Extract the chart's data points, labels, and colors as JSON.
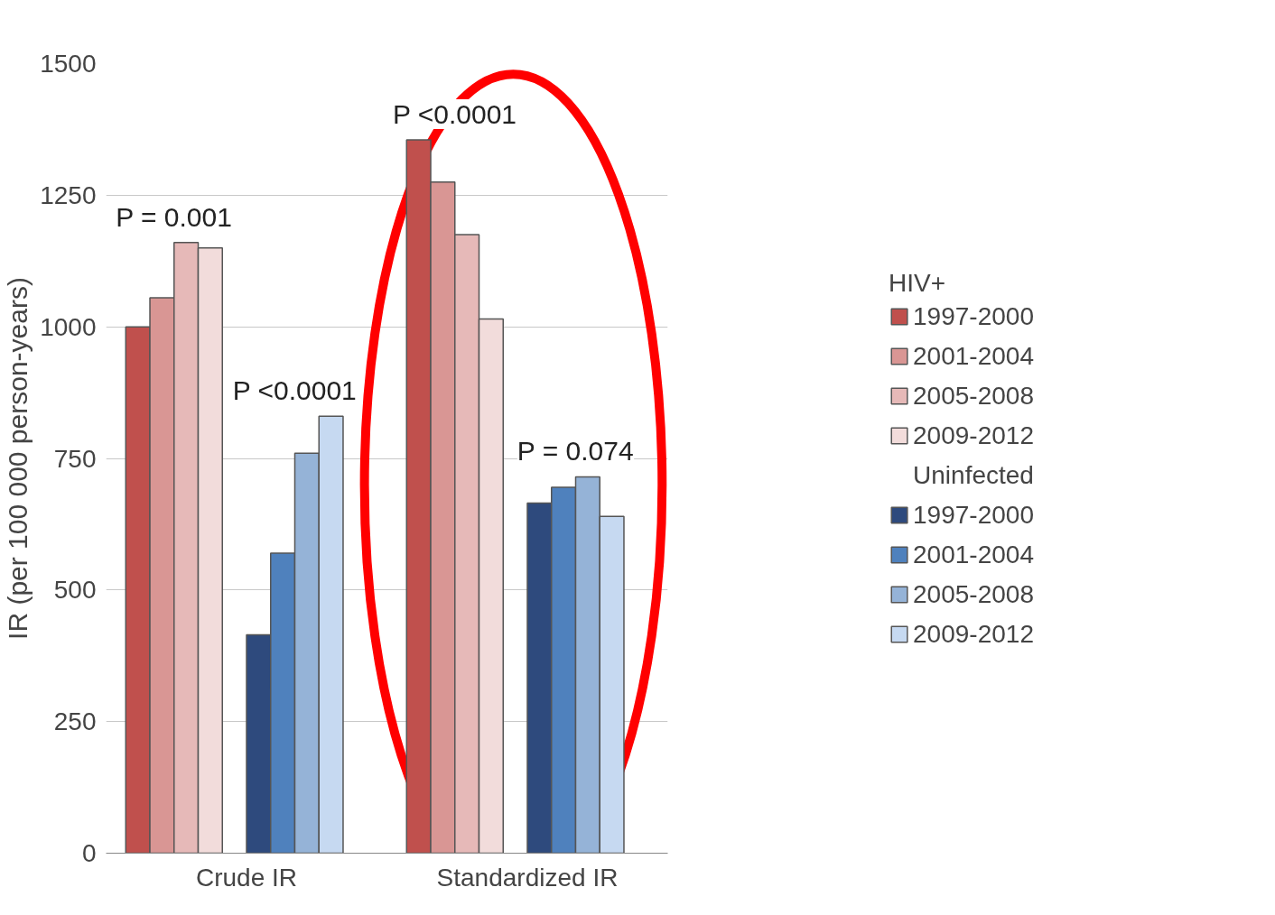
{
  "chart_data": {
    "type": "bar",
    "ylabel": "IR (per 100 000 person-years)",
    "categories": [
      "Crude IR",
      "Standardized IR"
    ],
    "series": [
      {
        "name": "1997-2000",
        "color": "#c0504d",
        "values": [
          1000,
          1355
        ]
      },
      {
        "name": "2001-2004",
        "color": "#d99694",
        "values": [
          1055,
          1275
        ]
      },
      {
        "name": "2005-2008",
        "color": "#e6b9b8",
        "values": [
          1160,
          1175
        ]
      },
      {
        "name": "2009-2012",
        "color": "#f2dcdb",
        "values": [
          1150,
          1015
        ]
      },
      {
        "name": "1997-2000",
        "color": "#2e4a7d",
        "values": [
          415,
          665
        ]
      },
      {
        "name": "2001-2004",
        "color": "#4f81bd",
        "values": [
          570,
          695
        ]
      },
      {
        "name": "2005-2008",
        "color": "#95b3d7",
        "values": [
          760,
          715
        ]
      },
      {
        "name": "2009-2012",
        "color": "#c6d9f1",
        "values": [
          830,
          640
        ]
      }
    ],
    "ylim": [
      0,
      1500
    ],
    "yticks": [
      0,
      250,
      500,
      750,
      1000,
      1250,
      1500
    ],
    "grid": "y",
    "legend": "right",
    "legend_title": "HIV+",
    "annotations": [
      "P = 0.001",
      "P <0.0001",
      "P <0.0001",
      "P = 0.074",
      "Uninfected"
    ]
  }
}
